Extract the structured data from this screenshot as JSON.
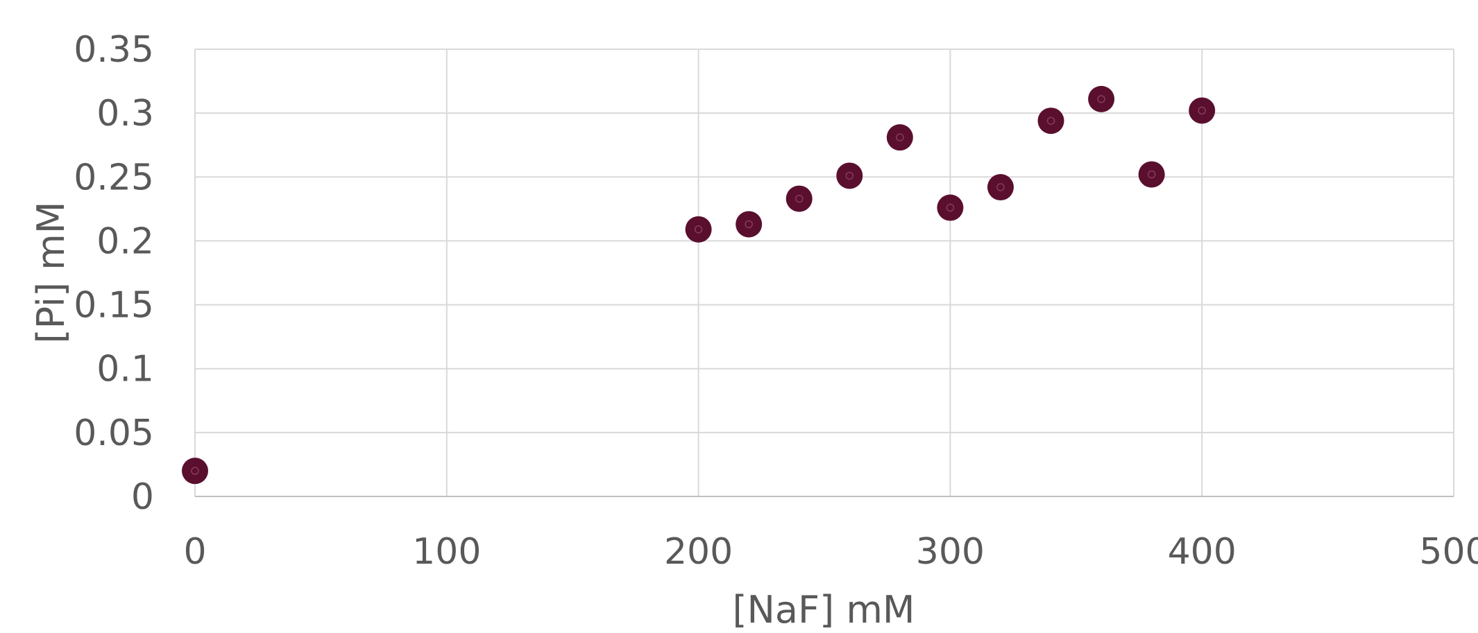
{
  "chart_data": {
    "type": "scatter",
    "title": "",
    "xlabel": "[NaF] mM",
    "ylabel": "[Pi] mM",
    "xlim": [
      0,
      500
    ],
    "ylim": [
      0,
      0.35
    ],
    "x_ticks": [
      0,
      100,
      200,
      300,
      400,
      500
    ],
    "y_ticks": [
      0,
      0.05,
      0.1,
      0.15,
      0.2,
      0.25,
      0.3,
      0.35
    ],
    "x_tick_labels": [
      "0",
      "100",
      "200",
      "300",
      "400",
      "500"
    ],
    "y_tick_labels": [
      "0",
      "0.05",
      "0.1",
      "0.15",
      "0.2",
      "0.25",
      "0.3",
      "0.35"
    ],
    "grid": true,
    "legend": "none",
    "marker_color": "#5a0f2e",
    "grid_color": "#d9d9d9",
    "text_color": "#595959",
    "series": [
      {
        "x": [
          0,
          200,
          220,
          240,
          260,
          280,
          300,
          320,
          340,
          360,
          380,
          400
        ],
        "y": [
          0.02,
          0.209,
          0.213,
          0.233,
          0.251,
          0.281,
          0.226,
          0.242,
          0.294,
          0.311,
          0.252,
          0.302
        ]
      }
    ]
  }
}
